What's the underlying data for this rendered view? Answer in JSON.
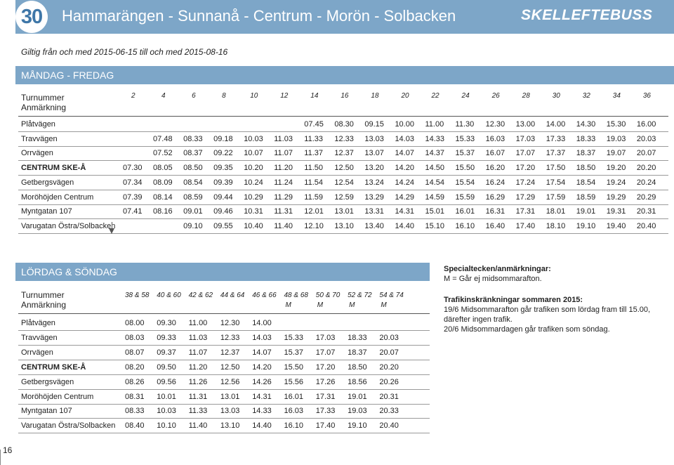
{
  "header": {
    "route_number": "30",
    "title": "Hammarängen - Sunnanå - Centrum - Morön - Solbacken",
    "brand": "SKELLEFTEBUSS"
  },
  "validity": "Giltig från och med 2015-06-15 till och med 2015-08-16",
  "weekday": {
    "title": "MÅNDAG - FREDAG",
    "header_label_1": "Turnummer",
    "header_label_2": "Anmärkning",
    "trip_numbers": [
      "2",
      "4",
      "6",
      "8",
      "10",
      "12",
      "14",
      "16",
      "18",
      "20",
      "22",
      "24",
      "26",
      "28",
      "30",
      "32",
      "34",
      "36"
    ],
    "stops": [
      {
        "name": "Plåtvägen",
        "bold": false,
        "times": [
          "07.45",
          "08.30",
          "09.15",
          "10.00",
          "11.00",
          "11.30",
          "12.30",
          "13.00",
          "14.00",
          "14.30",
          "15.30",
          "16.00"
        ]
      },
      {
        "name": "Travvägen",
        "bold": false,
        "times": [
          "07.48",
          "08.33",
          "09.18",
          "10.03",
          "11.03",
          "11.33",
          "12.33",
          "13.03",
          "14.03",
          "14.33",
          "15.33",
          "16.03",
          "17.03",
          "17.33",
          "18.33",
          "19.03",
          "20.03"
        ]
      },
      {
        "name": "Orrvägen",
        "bold": false,
        "times": [
          "07.52",
          "08.37",
          "09.22",
          "10.07",
          "11.07",
          "11.37",
          "12.37",
          "13.07",
          "14.07",
          "14.37",
          "15.37",
          "16.07",
          "17.07",
          "17.37",
          "18.37",
          "19.07",
          "20.07"
        ]
      },
      {
        "name": "CENTRUM SKE-Å",
        "bold": true,
        "times": [
          "07.30",
          "08.05",
          "08.50",
          "09.35",
          "10.20",
          "11.20",
          "11.50",
          "12.50",
          "13.20",
          "14.20",
          "14.50",
          "15.50",
          "16.20",
          "17.20",
          "17.50",
          "18.50",
          "19.20",
          "20.20"
        ]
      },
      {
        "name": "Getbergsvägen",
        "bold": false,
        "times": [
          "07.34",
          "08.09",
          "08.54",
          "09.39",
          "10.24",
          "11.24",
          "11.54",
          "12.54",
          "13.24",
          "14.24",
          "14.54",
          "15.54",
          "16.24",
          "17.24",
          "17.54",
          "18.54",
          "19.24",
          "20.24"
        ]
      },
      {
        "name": "Moröhöjden Centrum",
        "bold": false,
        "times": [
          "07.39",
          "08.14",
          "08.59",
          "09.44",
          "10.29",
          "11.29",
          "11.59",
          "12.59",
          "13.29",
          "14.29",
          "14.59",
          "15.59",
          "16.29",
          "17.29",
          "17.59",
          "18.59",
          "19.29",
          "20.29"
        ]
      },
      {
        "name": "Myntgatan 107",
        "bold": false,
        "times": [
          "07.41",
          "08.16",
          "09.01",
          "09.46",
          "10.31",
          "11.31",
          "12.01",
          "13.01",
          "13.31",
          "14.31",
          "15.01",
          "16.01",
          "16.31",
          "17.31",
          "18.01",
          "19.01",
          "19.31",
          "20.31"
        ]
      },
      {
        "name": "Varugatan Östra/Solbacken",
        "bold": false,
        "times": [
          "09.10",
          "09.55",
          "10.40",
          "11.40",
          "12.10",
          "13.10",
          "13.40",
          "14.40",
          "15.10",
          "16.10",
          "16.40",
          "17.40",
          "18.10",
          "19.10",
          "19.40",
          "20.40"
        ]
      }
    ]
  },
  "weekend": {
    "title": "LÖRDAG & SÖNDAG",
    "header_label_1": "Turnummer",
    "header_label_2": "Anmärkning",
    "trip_numbers": [
      "38 & 58",
      "40 & 60",
      "42 & 62",
      "44 & 64",
      "46 & 66",
      "48 & 68",
      "50 & 70",
      "52 & 72",
      "54 & 74"
    ],
    "remarks": [
      "",
      "",
      "",
      "",
      "",
      "M",
      "M",
      "M",
      "M"
    ],
    "stops": [
      {
        "name": "Plåtvägen",
        "bold": false,
        "times": [
          "08.00",
          "09.30",
          "11.00",
          "12.30",
          "14.00"
        ]
      },
      {
        "name": "Travvägen",
        "bold": false,
        "times": [
          "08.03",
          "09.33",
          "11.03",
          "12.33",
          "14.03",
          "15.33",
          "17.03",
          "18.33",
          "20.03"
        ]
      },
      {
        "name": "Orrvägen",
        "bold": false,
        "times": [
          "08.07",
          "09.37",
          "11.07",
          "12.37",
          "14.07",
          "15.37",
          "17.07",
          "18.37",
          "20.07"
        ]
      },
      {
        "name": "CENTRUM SKE-Å",
        "bold": true,
        "times": [
          "08.20",
          "09.50",
          "11.20",
          "12.50",
          "14.20",
          "15.50",
          "17.20",
          "18.50",
          "20.20"
        ]
      },
      {
        "name": "Getbergsvägen",
        "bold": false,
        "times": [
          "08.26",
          "09.56",
          "11.26",
          "12.56",
          "14.26",
          "15.56",
          "17.26",
          "18.56",
          "20.26"
        ]
      },
      {
        "name": "Moröhöjden Centrum",
        "bold": false,
        "times": [
          "08.31",
          "10.01",
          "11.31",
          "13.01",
          "14.31",
          "16.01",
          "17.31",
          "19.01",
          "20.31"
        ]
      },
      {
        "name": "Myntgatan 107",
        "bold": false,
        "times": [
          "08.33",
          "10.03",
          "11.33",
          "13.03",
          "14.33",
          "16.03",
          "17.33",
          "19.03",
          "20.33"
        ]
      },
      {
        "name": "Varugatan Östra/Solbacken",
        "bold": false,
        "times": [
          "08.40",
          "10.10",
          "11.40",
          "13.10",
          "14.40",
          "16.10",
          "17.40",
          "19.10",
          "20.40"
        ]
      }
    ]
  },
  "notes": {
    "special_title": "Specialtecken/anmärkningar:",
    "special_text": "M = Går ej midsommarafton.",
    "traffic_title": "Trafikinskränkningar sommaren 2015:",
    "traffic_line1": "19/6 Midsommarafton går trafiken som lördag fram till 15.00,",
    "traffic_line2": "därefter ingen trafik.",
    "traffic_line3": "20/6 Midsommardagen går trafiken som söndag."
  },
  "page_number": "16"
}
